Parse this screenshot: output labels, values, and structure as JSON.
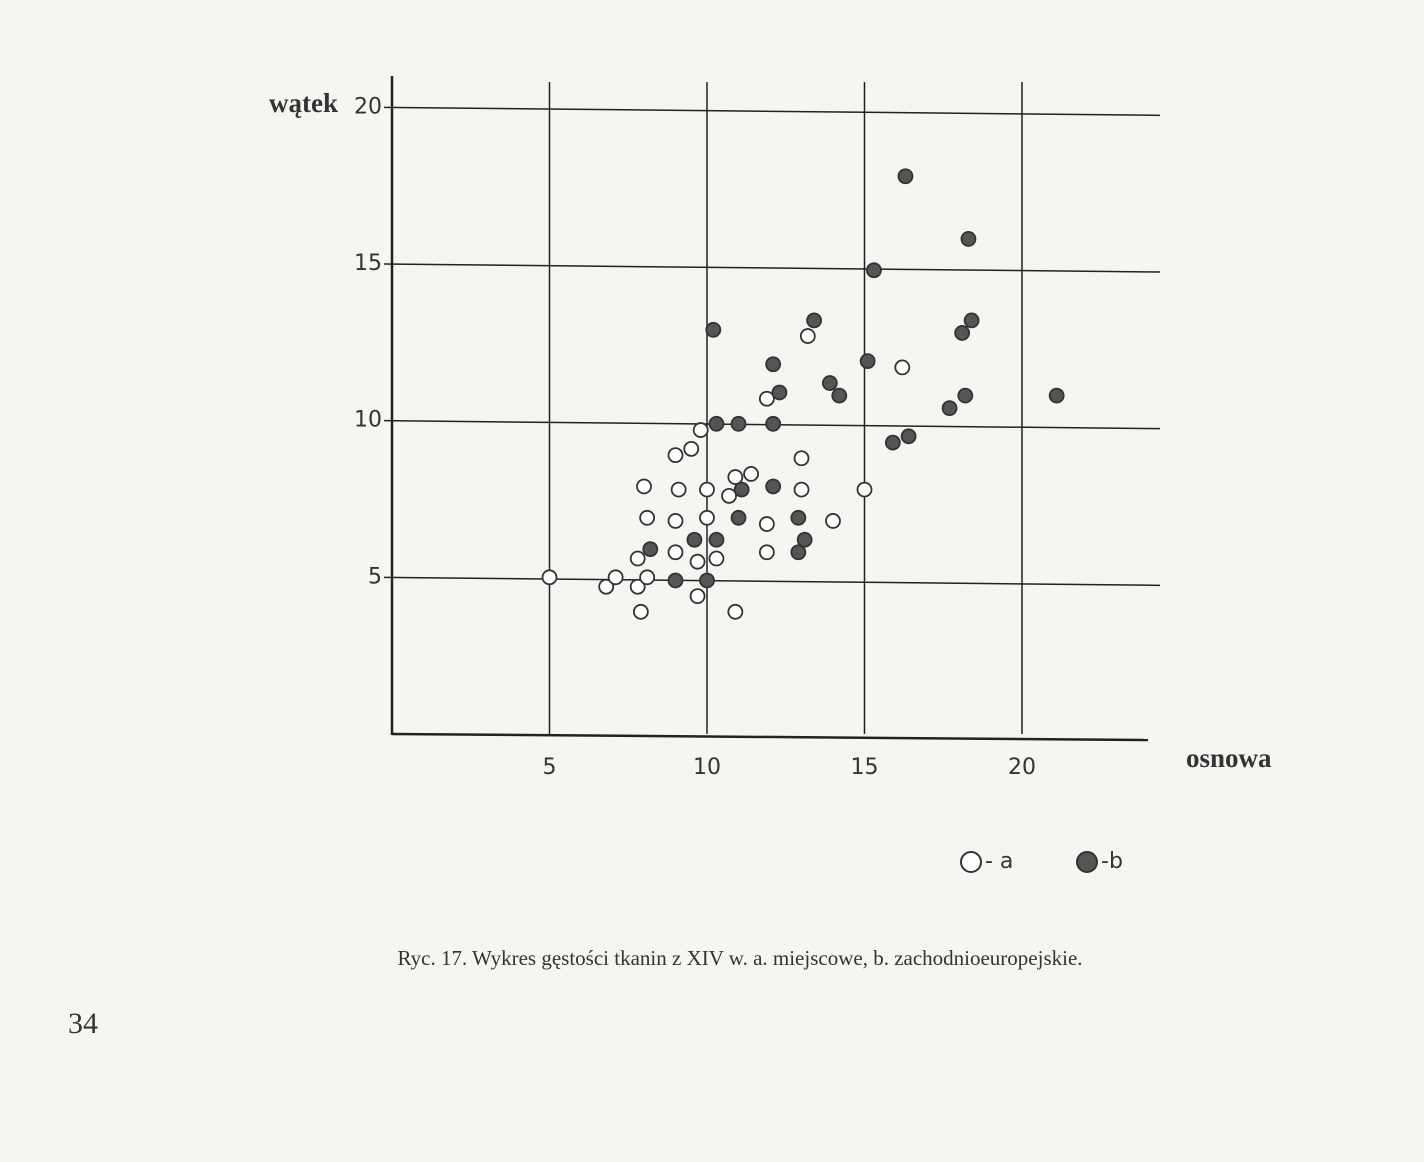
{
  "chart_data": {
    "type": "scatter",
    "xlabel": "osnowa",
    "ylabel": "wątek",
    "caption": "Ryc. 17. Wykres gęstości tkanin z XIV w. a. miejscowe, b. zachodnioeuropejskie.",
    "xlim": [
      0,
      24
    ],
    "ylim": [
      0,
      21
    ],
    "xticks": [
      5,
      10,
      15,
      20
    ],
    "yticks": [
      5,
      10,
      15,
      20
    ],
    "grid": true,
    "series": [
      {
        "name": "- a",
        "color": "#ffffff",
        "x": [
          5,
          6.8,
          7.1,
          7.8,
          7.8,
          8.1,
          7.9,
          8.0,
          8.1,
          9.0,
          9.0,
          9.1,
          9.0,
          9.5,
          9.8,
          10.0,
          10.0,
          9.7,
          10.3,
          9.7,
          10.9,
          10.7,
          10.9,
          11.4,
          11.9,
          11.9,
          11.9,
          13.0,
          13.0,
          14.0,
          13.2,
          15.0,
          16.2
        ],
        "values": [
          5.0,
          4.7,
          5.0,
          5.6,
          4.7,
          5.0,
          3.9,
          7.9,
          6.9,
          6.8,
          5.8,
          7.8,
          8.9,
          9.1,
          9.7,
          7.8,
          6.9,
          5.5,
          5.6,
          4.4,
          3.9,
          7.6,
          8.2,
          8.3,
          6.7,
          5.8,
          10.7,
          8.8,
          7.8,
          6.8,
          12.7,
          7.8,
          11.7
        ]
      },
      {
        "name": "-b",
        "color": "#555555",
        "x": [
          16.3,
          18.3,
          15.3,
          10.2,
          13.4,
          18.1,
          18.4,
          12.1,
          15.1,
          12.3,
          13.9,
          14.2,
          17.7,
          18.2,
          21.1,
          10.3,
          11.0,
          12.1,
          15.9,
          16.4,
          11.1,
          12.1,
          11.0,
          12.9,
          9.6,
          10.3,
          13.1,
          12.9,
          8.2,
          9.0,
          10.0
        ],
        "values": [
          17.8,
          15.8,
          14.8,
          12.9,
          13.2,
          12.8,
          13.2,
          11.8,
          11.9,
          10.9,
          11.2,
          10.8,
          10.4,
          10.8,
          10.8,
          9.9,
          9.9,
          9.9,
          9.3,
          9.5,
          7.8,
          7.9,
          6.9,
          6.9,
          6.2,
          6.2,
          6.2,
          5.8,
          5.9,
          4.9,
          4.9
        ]
      }
    ]
  },
  "page_number": "34"
}
